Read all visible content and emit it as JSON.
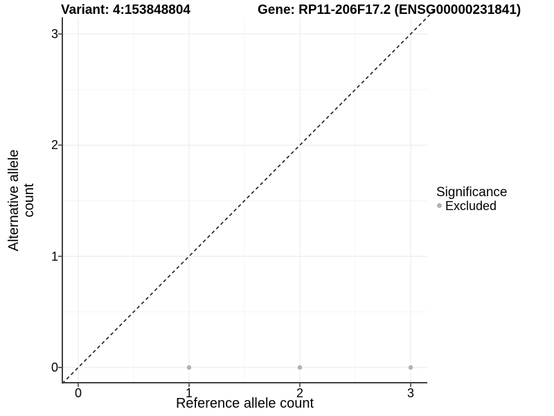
{
  "figure": {
    "title_left": "Variant: 4:153848804",
    "title_right": "Gene: RP11-206F17.2 (ENSG00000231841)"
  },
  "chart_data": {
    "type": "scatter",
    "title": "Variant: 4:153848804 | Gene: RP11-206F17.2 (ENSG00000231841)",
    "xlabel": "Reference allele count",
    "ylabel": "Alternative allele count",
    "xlim": [
      -0.145,
      3.25
    ],
    "ylim": [
      -0.14,
      3.25
    ],
    "x_ticks": [
      0,
      1,
      2,
      3
    ],
    "y_ticks": [
      0,
      1,
      2,
      3
    ],
    "minor_ticks_x": [
      0.5,
      1.5,
      2.5
    ],
    "minor_ticks_y": [
      0.5,
      1.5,
      2.5
    ],
    "grid": {
      "major": true,
      "minor": true
    },
    "series": [
      {
        "name": "Excluded",
        "color": "#b3b3b3",
        "points": [
          {
            "x": 1,
            "y": 0
          },
          {
            "x": 2,
            "y": 0
          },
          {
            "x": 3,
            "y": 0
          }
        ]
      }
    ],
    "reference_line": {
      "slope": 1,
      "intercept": 0,
      "style": "dashed",
      "color": "#1a1a1a"
    },
    "legend": {
      "title": "Significance",
      "position": "right",
      "entries": [
        {
          "label": "Excluded",
          "color": "#b3b3b3"
        }
      ]
    }
  },
  "colors": {
    "background": "#ffffff",
    "axis_line": "#404040",
    "tick_mark": "#404040",
    "grid_major": "#e9e9e9",
    "grid_minor": "#f4f4f4",
    "point": "#b3b3b3",
    "dashed_line": "#1a1a1a",
    "text": "#000000"
  }
}
